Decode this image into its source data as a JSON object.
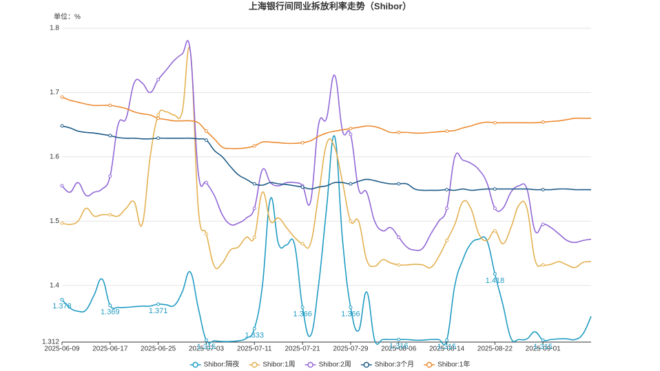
{
  "chart_data": {
    "type": "line",
    "title": "上海银行间同业拆放利率走势（Shibor）",
    "ylabel": "单位：%",
    "categories": [
      "2025-06-09",
      null,
      null,
      null,
      null,
      null,
      "2025-06-17",
      null,
      null,
      null,
      null,
      null,
      "2025-06-25",
      null,
      null,
      null,
      null,
      null,
      "2025-07-03",
      null,
      null,
      null,
      null,
      null,
      "2025-07-11",
      null,
      null,
      null,
      null,
      null,
      "2025-07-21",
      null,
      null,
      null,
      null,
      null,
      "2025-07-29",
      null,
      null,
      null,
      null,
      null,
      "2025-08-06",
      null,
      null,
      null,
      null,
      null,
      "2025-08-14",
      null,
      null,
      null,
      null,
      null,
      "2025-08-22",
      null,
      null,
      null,
      null,
      null,
      "2025-09-01",
      null,
      null,
      null,
      null,
      null,
      null
    ],
    "ylim": [
      1.312,
      1.8
    ],
    "yticks": [
      1.312,
      1.4,
      1.5,
      1.6,
      1.7,
      1.8
    ],
    "grid": true,
    "legend": "bottom",
    "series": [
      {
        "name": "Shibor:隔夜",
        "color": "#1f9bc2",
        "values": [
          1.378,
          1.365,
          1.36,
          1.362,
          1.385,
          1.41,
          1.369,
          1.366,
          1.366,
          1.367,
          1.368,
          1.368,
          1.371,
          1.37,
          1.369,
          1.39,
          1.421,
          1.365,
          1.315,
          1.314,
          1.313,
          1.313,
          1.314,
          1.318,
          1.333,
          1.4,
          1.535,
          1.465,
          1.463,
          1.464,
          1.366,
          1.322,
          1.4,
          1.52,
          1.632,
          1.47,
          1.366,
          1.33,
          1.39,
          1.315,
          1.316,
          1.316,
          1.316,
          1.316,
          1.315,
          1.315,
          1.316,
          1.316,
          1.315,
          1.4,
          1.44,
          1.465,
          1.472,
          1.47,
          1.418,
          1.37,
          1.318,
          1.316,
          1.317,
          1.328,
          1.315,
          1.316,
          1.317,
          1.317,
          1.316,
          1.325,
          1.352
        ],
        "value_labels": [
          "1.378",
          null,
          null,
          null,
          null,
          null,
          "1.369",
          null,
          null,
          null,
          null,
          null,
          "1.371",
          null,
          null,
          null,
          null,
          null,
          "1.315",
          null,
          null,
          null,
          null,
          null,
          "1.333",
          null,
          null,
          null,
          null,
          null,
          "1.366",
          null,
          null,
          null,
          null,
          null,
          "1.366",
          null,
          null,
          null,
          null,
          null,
          "1.316",
          null,
          null,
          null,
          null,
          null,
          "1.315",
          null,
          null,
          null,
          null,
          null,
          "1.418",
          null,
          null,
          null,
          null,
          null,
          "1.315",
          null,
          null,
          null,
          null,
          null,
          null
        ]
      },
      {
        "name": "Shibor:1周",
        "color": "#e3b04f",
        "values": [
          1.497,
          1.495,
          1.5,
          1.52,
          1.508,
          1.51,
          1.51,
          1.508,
          1.52,
          1.53,
          1.495,
          1.6,
          1.665,
          1.67,
          1.665,
          1.67,
          1.765,
          1.52,
          1.48,
          1.43,
          1.435,
          1.455,
          1.46,
          1.475,
          1.475,
          1.545,
          1.5,
          1.505,
          1.49,
          1.475,
          1.465,
          1.465,
          1.54,
          1.62,
          1.615,
          1.56,
          1.5,
          1.5,
          1.44,
          1.43,
          1.44,
          1.435,
          1.432,
          1.432,
          1.433,
          1.432,
          1.428,
          1.445,
          1.47,
          1.495,
          1.53,
          1.52,
          1.48,
          1.47,
          1.485,
          1.465,
          1.49,
          1.525,
          1.52,
          1.44,
          1.432,
          1.433,
          1.437,
          1.432,
          1.428,
          1.436,
          1.437
        ]
      },
      {
        "name": "Shibor:2周",
        "color": "#9166d6",
        "values": [
          1.555,
          1.545,
          1.56,
          1.54,
          1.545,
          1.55,
          1.57,
          1.65,
          1.66,
          1.715,
          1.715,
          1.7,
          1.72,
          1.735,
          1.75,
          1.76,
          1.765,
          1.575,
          1.56,
          1.54,
          1.51,
          1.495,
          1.497,
          1.505,
          1.52,
          1.58,
          1.56,
          1.555,
          1.56,
          1.56,
          1.555,
          1.53,
          1.65,
          1.66,
          1.727,
          1.64,
          1.635,
          1.55,
          1.545,
          1.5,
          1.485,
          1.49,
          1.475,
          1.46,
          1.455,
          1.458,
          1.48,
          1.5,
          1.52,
          1.6,
          1.595,
          1.59,
          1.58,
          1.56,
          1.52,
          1.52,
          1.545,
          1.555,
          1.55,
          1.485,
          1.495,
          1.49,
          1.48,
          1.47,
          1.467,
          1.47,
          1.472
        ]
      },
      {
        "name": "Shibor:3个月",
        "color": "#1d5a87",
        "values": [
          1.648,
          1.645,
          1.64,
          1.638,
          1.637,
          1.635,
          1.633,
          1.63,
          1.629,
          1.629,
          1.628,
          1.628,
          1.629,
          1.629,
          1.629,
          1.629,
          1.629,
          1.628,
          1.626,
          1.61,
          1.6,
          1.585,
          1.572,
          1.565,
          1.558,
          1.556,
          1.56,
          1.558,
          1.557,
          1.555,
          1.553,
          1.55,
          1.553,
          1.555,
          1.56,
          1.56,
          1.558,
          1.562,
          1.565,
          1.563,
          1.56,
          1.558,
          1.558,
          1.558,
          1.55,
          1.548,
          1.548,
          1.548,
          1.549,
          1.548,
          1.55,
          1.548,
          1.549,
          1.55,
          1.55,
          1.55,
          1.55,
          1.55,
          1.55,
          1.549,
          1.549,
          1.549,
          1.55,
          1.55,
          1.549,
          1.549,
          1.549
        ]
      },
      {
        "name": "Shibor:1年",
        "color": "#ec8a30",
        "values": [
          1.693,
          1.688,
          1.685,
          1.682,
          1.68,
          1.68,
          1.68,
          1.678,
          1.675,
          1.67,
          1.667,
          1.665,
          1.66,
          1.658,
          1.656,
          1.656,
          1.656,
          1.653,
          1.64,
          1.628,
          1.615,
          1.613,
          1.613,
          1.614,
          1.617,
          1.623,
          1.623,
          1.622,
          1.621,
          1.621,
          1.622,
          1.625,
          1.632,
          1.637,
          1.64,
          1.642,
          1.644,
          1.646,
          1.648,
          1.647,
          1.643,
          1.638,
          1.638,
          1.638,
          1.637,
          1.637,
          1.638,
          1.639,
          1.64,
          1.641,
          1.645,
          1.648,
          1.652,
          1.654,
          1.653,
          1.653,
          1.653,
          1.653,
          1.653,
          1.653,
          1.654,
          1.655,
          1.656,
          1.658,
          1.66,
          1.66,
          1.66
        ]
      }
    ]
  }
}
